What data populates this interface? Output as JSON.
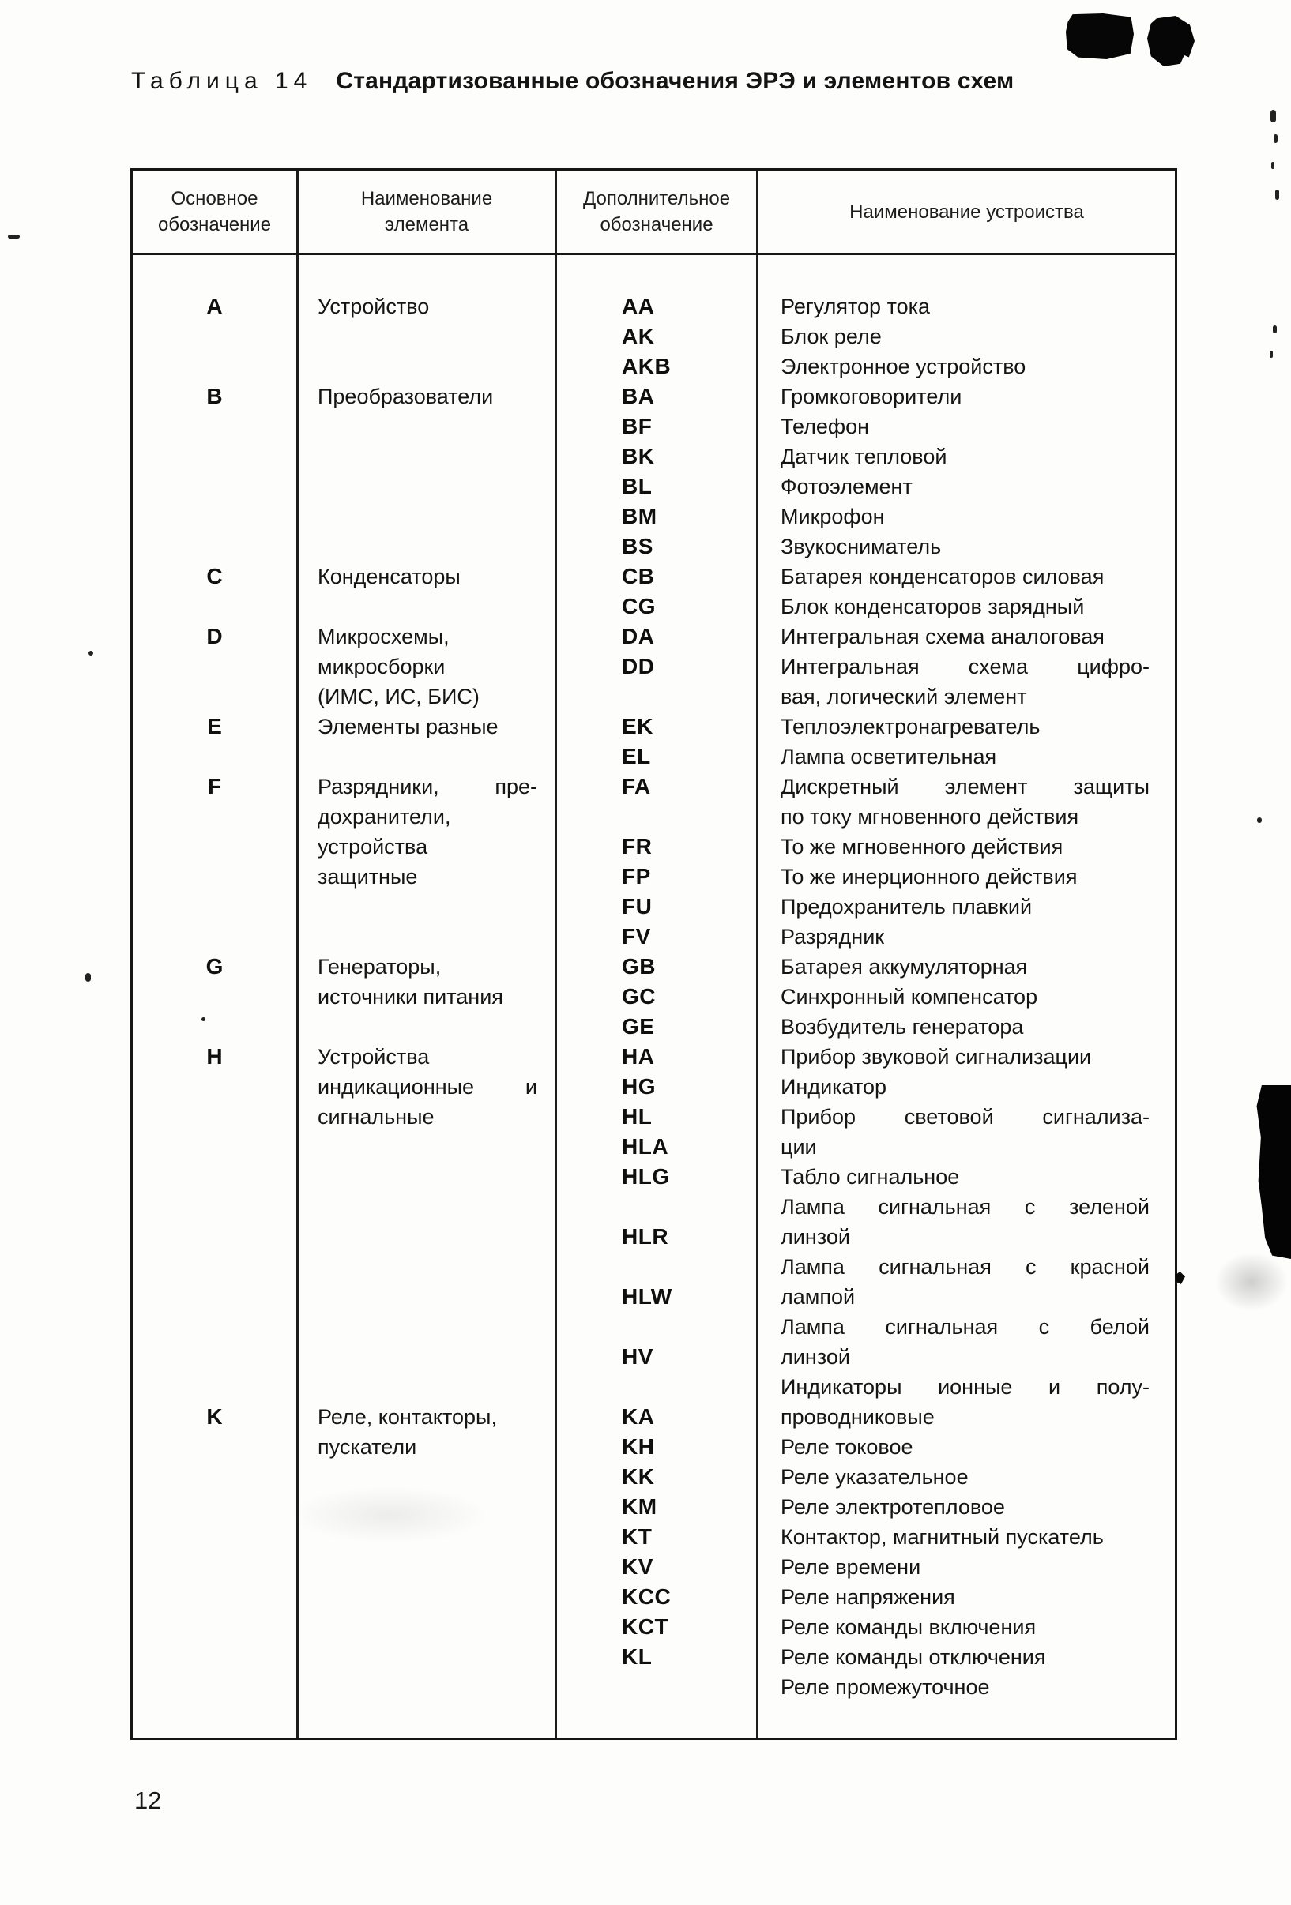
{
  "page_number": "12",
  "title": {
    "label": "Таблица 14",
    "text": "Стандартизованные обозначения ЭРЭ и элементов схем"
  },
  "colors": {
    "text": "#151515",
    "ink_blob": "#060606",
    "border": "#1c1c1c"
  },
  "table": {
    "columns": [
      "Основное обозначение",
      "Наименование элемента",
      "Дополнительное обозначение",
      "Наименование устроиства"
    ],
    "rows": [
      {
        "main": "A",
        "element": "Устройство",
        "code": "AA",
        "device": "Регулятор тока"
      },
      {
        "main": "",
        "element": "",
        "code": "AK",
        "device": "Блок реле"
      },
      {
        "main": "",
        "element": "",
        "code": "AKB",
        "device": "Электронное устройство"
      },
      {
        "main": "B",
        "element": "Преобразователи",
        "code": "BA",
        "device": "Громкоговорители"
      },
      {
        "main": "",
        "element": "",
        "code": "BF",
        "device": "Телефон"
      },
      {
        "main": "",
        "element": "",
        "code": "BK",
        "device": "Датчик тепловой"
      },
      {
        "main": "",
        "element": "",
        "code": "BL",
        "device": "Фотоэлемент"
      },
      {
        "main": "",
        "element": "",
        "code": "BM",
        "device": "Микрофон"
      },
      {
        "main": "",
        "element": "",
        "code": "BS",
        "device": "Звукосниматель"
      },
      {
        "main": "C",
        "element": "Конденсаторы",
        "code": "CB",
        "device": "Батарея конденсаторов силовая"
      },
      {
        "main": "",
        "element": "",
        "code": "CG",
        "device": "Блок конденсаторов зарядный"
      },
      {
        "main": "D",
        "element": "Микросхемы,",
        "code": "DA",
        "device": "Интегральная схема аналоговая"
      },
      {
        "main": "",
        "element": "микросборки",
        "code": "DD",
        "device": "Интегральная схема цифро-"
      },
      {
        "main": "",
        "element": "(ИМС, ИС, БИС)",
        "code": "",
        "device": "вая, логический элемент"
      },
      {
        "main": "E",
        "element": "Элементы разные",
        "code": "EK",
        "device": "Теплоэлектронагреватель"
      },
      {
        "main": "",
        "element": "",
        "code": "EL",
        "device": "Лампа осветительная"
      },
      {
        "main": "F",
        "element": "Разрядники, пре-",
        "code": "FA",
        "device": "Дискретный элемент защиты"
      },
      {
        "main": "",
        "element": "дохранители,",
        "code": "",
        "device": "по току мгновенного действия"
      },
      {
        "main": "",
        "element": "устройства",
        "code": "FR",
        "device": "То же мгновенного действия"
      },
      {
        "main": "",
        "element": "защитные",
        "code": "FP",
        "device": "То же инерционного действия"
      },
      {
        "main": "",
        "element": "",
        "code": "FU",
        "device": "Предохранитель плавкий"
      },
      {
        "main": "",
        "element": "",
        "code": "FV",
        "device": "Разрядник"
      },
      {
        "main": "G",
        "element": "Генераторы,",
        "code": "GB",
        "device": "Батарея аккумуляторная"
      },
      {
        "main": "",
        "element": "источники питания",
        "code": "GC",
        "device": "Синхронный компенсатор"
      },
      {
        "main": "",
        "element": "",
        "code": "GE",
        "device": "Возбудитель генератора"
      },
      {
        "main": "H",
        "element": "Устройства",
        "code": "HA",
        "device": "Прибор звуковой сигнализации"
      },
      {
        "main": "",
        "element": "индикационные и",
        "code": "HG",
        "device": "Индикатор"
      },
      {
        "main": "",
        "element": "сигнальные",
        "code": "HL",
        "device": "Прибор световой сигнализа-"
      },
      {
        "main": "",
        "element": "",
        "code": "HLA",
        "device": "ции"
      },
      {
        "main": "",
        "element": "",
        "code": "HLG",
        "device": "Табло сигнальное"
      },
      {
        "main": "",
        "element": "",
        "code": "",
        "device": "Лампа сигнальная с зеленой"
      },
      {
        "main": "",
        "element": "",
        "code": "HLR",
        "device": "линзой"
      },
      {
        "main": "",
        "element": "",
        "code": "",
        "device": "Лампа сигнальная с красной"
      },
      {
        "main": "",
        "element": "",
        "code": "HLW",
        "device": "лампой"
      },
      {
        "main": "",
        "element": "",
        "code": "",
        "device": "Лампа сигнальная с белой"
      },
      {
        "main": "",
        "element": "",
        "code": "HV",
        "device": "линзой"
      },
      {
        "main": "",
        "element": "",
        "code": "",
        "device": "Индикаторы ионные и полу-"
      },
      {
        "main": "K",
        "element": "Реле, контакторы,",
        "code": "KA",
        "device": "проводниковые"
      },
      {
        "main": "",
        "element": "пускатели",
        "code": "KH",
        "device": "Реле токовое"
      },
      {
        "main": "",
        "element": "",
        "code": "KK",
        "device": "Реле указательное"
      },
      {
        "main": "",
        "element": "",
        "code": "KM",
        "device": "Реле электротепловое"
      },
      {
        "main": "",
        "element": "",
        "code": "KT",
        "device": "Контактор, магнитный пускатель"
      },
      {
        "main": "",
        "element": "",
        "code": "KV",
        "device": "Реле времени"
      },
      {
        "main": "",
        "element": "",
        "code": "KCC",
        "device": "Реле напряжения"
      },
      {
        "main": "",
        "element": "",
        "code": "KCT",
        "device": "Реле команды включения"
      },
      {
        "main": "",
        "element": "",
        "code": "KL",
        "device": "Реле команды отключения"
      },
      {
        "main": "",
        "element": "",
        "code": "",
        "device": "Реле промежуточное"
      }
    ]
  }
}
